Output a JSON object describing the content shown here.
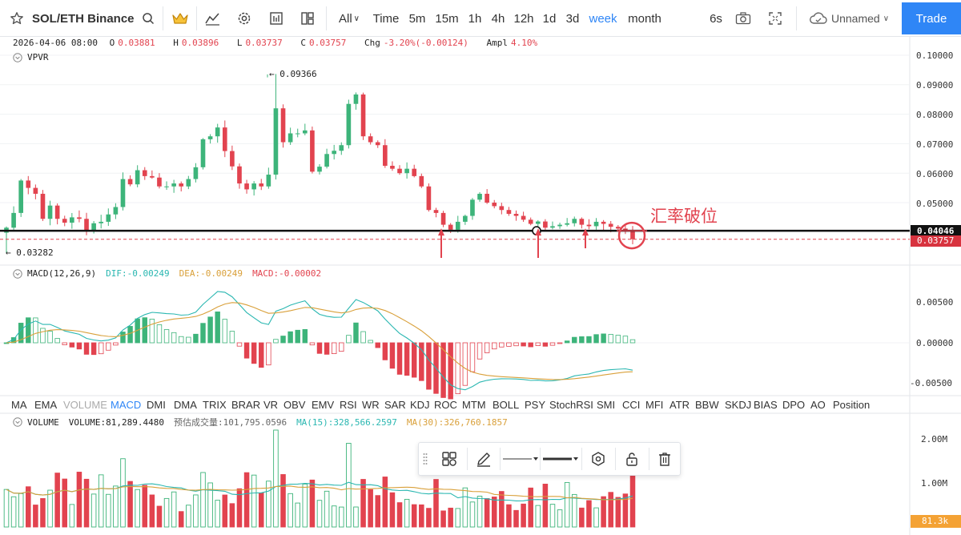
{
  "toolbar": {
    "symbol": "SOL/ETH Binance",
    "intervals": [
      {
        "label": "All",
        "active": false
      },
      {
        "label": "Time",
        "active": false
      },
      {
        "label": "5m",
        "active": false
      },
      {
        "label": "15m",
        "active": false
      },
      {
        "label": "1h",
        "active": false
      },
      {
        "label": "4h",
        "active": false
      },
      {
        "label": "12h",
        "active": false
      },
      {
        "label": "1d",
        "active": false
      },
      {
        "label": "3d",
        "active": false
      },
      {
        "label": "week",
        "active": true
      },
      {
        "label": "month",
        "active": false
      }
    ],
    "refresh": "6s",
    "layout_name": "Unnamed",
    "trade_label": "Trade"
  },
  "ohlc": {
    "date": "2026-04-06 08:00",
    "o_label": "O",
    "o": "0.03881",
    "h_label": "H",
    "h": "0.03896",
    "l_label": "L",
    "l": "0.03737",
    "c_label": "C",
    "c": "0.03757",
    "chg_label": "Chg",
    "chg": "-3.20%(-0.00124)",
    "ampl_label": "Ampl",
    "ampl": "4.10%"
  },
  "vpvr_label": "VPVR",
  "price_axis": [
    "0.10000",
    "0.09000",
    "0.08000",
    "0.07000",
    "0.06000",
    "0.05000"
  ],
  "markers": {
    "high": "← 0.09366",
    "low": "← 0.03282",
    "annotation": "汇率破位",
    "support_price": "0.04046",
    "last_price": "0.03757"
  },
  "macd": {
    "title": "MACD(12,26,9)",
    "dif": "DIF:-0.00249",
    "dea": "DEA:-0.00249",
    "macd": "MACD:-0.00002",
    "axis": [
      "0.00500",
      "0.00000",
      "-0.00500"
    ]
  },
  "indicator_tabs": [
    "MA",
    "EMA",
    "VOLUME",
    "MACD",
    "DMI",
    "DMA",
    "TRIX",
    "BRAR",
    "VR",
    "OBV",
    "EMV",
    "RSI",
    "WR",
    "SAR",
    "KDJ",
    "ROC",
    "MTM",
    "BOLL",
    "PSY",
    "StochRSI",
    "SMI",
    "CCI",
    "MFI",
    "ATR",
    "BBW",
    "SKDJ",
    "BIAS",
    "DPO",
    "AO",
    "Position"
  ],
  "indicator_tabs_active": [
    "MACD"
  ],
  "indicator_tabs_muted": [
    "VOLUME"
  ],
  "volume": {
    "title": "VOLUME",
    "value": "VOLUME:81,289.4480",
    "estimate": "预估成交量:101,795.0596",
    "ma15": "MA(15):328,566.2597",
    "ma30": "MA(30):326,760.1857",
    "axis": [
      "2.00M",
      "1.00M"
    ],
    "last": "81.3k"
  },
  "colors": {
    "up": "#3db47a",
    "down": "#e2434f",
    "accent": "#2f86f6",
    "dif": "#2ab7b1",
    "dea": "#d9a03a",
    "ma15": "#2ab7b1",
    "ma30": "#d9a03a"
  },
  "chart_data": {
    "type": "candlestick",
    "description": "Weekly SOL/ETH candles; values are approximate closes read from the price axis",
    "closes": [
      0.0415,
      0.0465,
      0.0575,
      0.055,
      0.053,
      0.0445,
      0.049,
      0.0445,
      0.0432,
      0.045,
      0.0445,
      0.0405,
      0.043,
      0.0435,
      0.046,
      0.0485,
      0.058,
      0.0562,
      0.061,
      0.059,
      0.0585,
      0.0555,
      0.0555,
      0.0565,
      0.0555,
      0.058,
      0.062,
      0.0715,
      0.0725,
      0.0755,
      0.0675,
      0.0623,
      0.0565,
      0.0545,
      0.0565,
      0.0555,
      0.0595,
      0.082,
      0.0705,
      0.0735,
      0.0735,
      0.0745,
      0.0605,
      0.0622,
      0.0665,
      0.0676,
      0.0695,
      0.0835,
      0.0867,
      0.0725,
      0.0705,
      0.0695,
      0.0625,
      0.0615,
      0.06,
      0.0615,
      0.059,
      0.0555,
      0.0475,
      0.0465,
      0.0425,
      0.0408,
      0.0435,
      0.0455,
      0.051,
      0.053,
      0.05,
      0.0488,
      0.0475,
      0.0462,
      0.0455,
      0.0442,
      0.0428,
      0.0436,
      0.0415,
      0.042,
      0.0425,
      0.043,
      0.0445,
      0.0425,
      0.042,
      0.0435,
      0.0428,
      0.0418,
      0.0412,
      0.0407,
      0.0376
    ],
    "ylim": [
      0.032,
      0.104
    ]
  }
}
